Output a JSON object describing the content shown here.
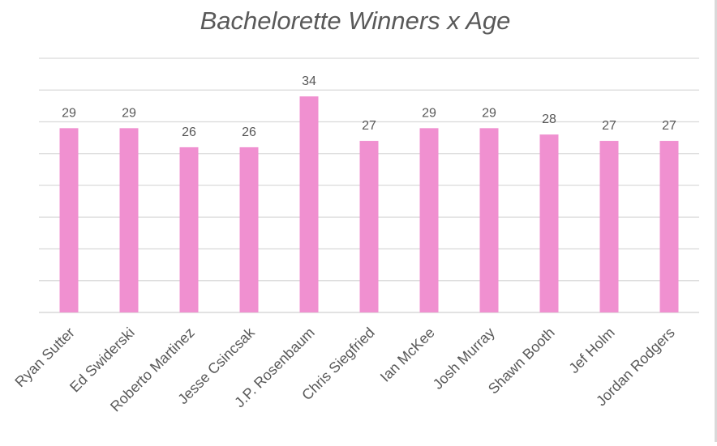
{
  "chart_data": {
    "type": "bar",
    "title": "Bachelorette Winners x Age",
    "categories": [
      "Ryan Sutter",
      "Ed Swiderski",
      "Roberto Martinez",
      "Jesse Csincsak",
      "J.P. Rosenbaum",
      "Chris Siegfried",
      "Ian McKee",
      "Josh Murray",
      "Shawn Booth",
      "Jef Holm",
      "Jordan Rodgers"
    ],
    "values": [
      29,
      29,
      26,
      26,
      34,
      27,
      29,
      29,
      28,
      27,
      27
    ],
    "data_labels": [
      "29",
      "29",
      "26",
      "26",
      "34",
      "27",
      "29",
      "29",
      "28",
      "27",
      "27"
    ],
    "xlabel": "",
    "ylabel": "",
    "ylim": [
      0,
      40
    ],
    "y_gridline_step": 5,
    "y_tick_labels_shown": false,
    "grid": true,
    "legend": "none",
    "bar_color": "#f090d0",
    "gridline_color": "#d9d9d9",
    "title_color": "#595959",
    "label_color": "#595959"
  }
}
